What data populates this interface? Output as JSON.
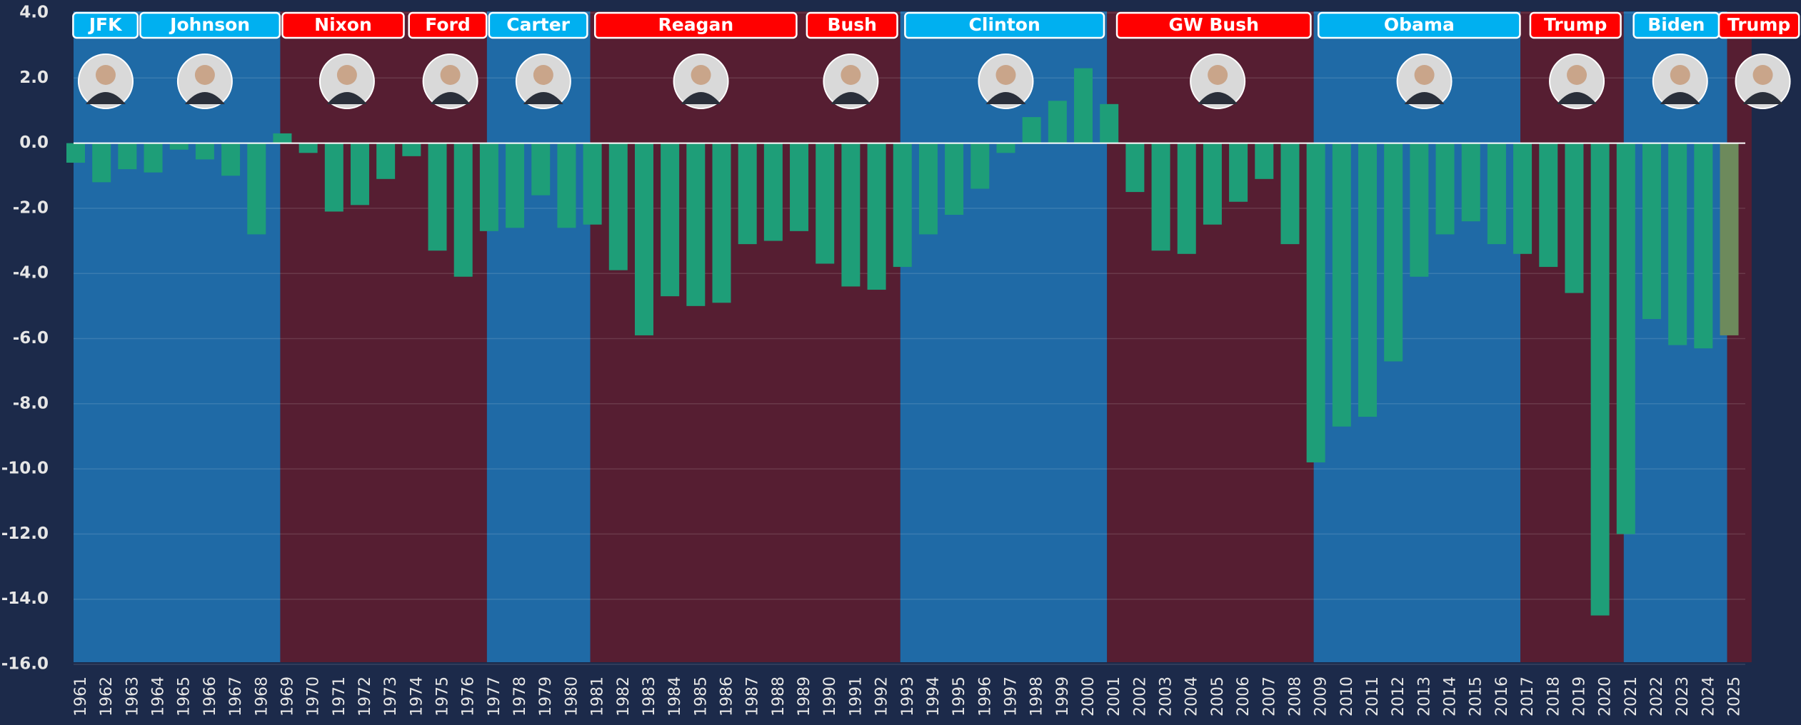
{
  "chart_data": {
    "type": "bar",
    "categories": [
      "1961",
      "1962",
      "1963",
      "1964",
      "1965",
      "1966",
      "1967",
      "1968",
      "1969",
      "1970",
      "1971",
      "1972",
      "1973",
      "1974",
      "1975",
      "1976",
      "1977",
      "1978",
      "1979",
      "1980",
      "1981",
      "1982",
      "1983",
      "1984",
      "1985",
      "1986",
      "1987",
      "1988",
      "1989",
      "1990",
      "1991",
      "1992",
      "1993",
      "1994",
      "1995",
      "1996",
      "1997",
      "1998",
      "1999",
      "2000",
      "2001",
      "2002",
      "2003",
      "2004",
      "2005",
      "2006",
      "2007",
      "2008",
      "2009",
      "2010",
      "2011",
      "2012",
      "2013",
      "2014",
      "2015",
      "2016",
      "2017",
      "2018",
      "2019",
      "2020",
      "2021",
      "2022",
      "2023",
      "2024",
      "2025"
    ],
    "values": [
      -0.6,
      -1.2,
      -0.8,
      -0.9,
      -0.2,
      -0.5,
      -1.0,
      -2.8,
      0.3,
      -0.3,
      -2.1,
      -1.9,
      -1.1,
      -0.4,
      -3.3,
      -4.1,
      -2.7,
      -2.6,
      -1.6,
      -2.6,
      -2.5,
      -3.9,
      -5.9,
      -4.7,
      -5.0,
      -4.9,
      -3.1,
      -3.0,
      -2.7,
      -3.7,
      -4.4,
      -4.5,
      -3.8,
      -2.8,
      -2.2,
      -1.4,
      -0.3,
      0.8,
      1.3,
      2.3,
      1.2,
      -1.5,
      -3.3,
      -3.4,
      -2.5,
      -1.8,
      -1.1,
      -3.1,
      -9.8,
      -8.7,
      -8.4,
      -6.7,
      -4.1,
      -2.8,
      -2.4,
      -3.1,
      -3.4,
      -3.8,
      -4.6,
      -14.5,
      -12.0,
      -5.4,
      -6.2,
      -6.3,
      -5.9
    ],
    "color": "#1e9e78",
    "color_overrides": {
      "64": "#6d8a5c"
    },
    "ylim": [
      -16,
      4
    ],
    "yticks": [
      {
        "value": 4,
        "label": "4.0"
      },
      {
        "value": 2,
        "label": "2.0"
      },
      {
        "value": 0,
        "label": "0.0"
      },
      {
        "value": -2,
        "label": "-2.0"
      },
      {
        "value": -4,
        "label": "-4.0"
      },
      {
        "value": -6,
        "label": "-6.0"
      },
      {
        "value": -8,
        "label": "-8.0"
      },
      {
        "value": -10,
        "label": "-10.0"
      },
      {
        "value": -12,
        "label": "-12.0"
      },
      {
        "value": -14,
        "label": "-14.0"
      },
      {
        "value": -16,
        "label": "-16.0"
      }
    ],
    "grid": true,
    "presidents": [
      {
        "name": "JFK",
        "color": "#00b0f0"
      },
      {
        "name": "Johnson",
        "color": "#00b0f0"
      },
      {
        "name": "Nixon",
        "color": "#ff0000"
      },
      {
        "name": "Ford",
        "color": "#ff0000"
      },
      {
        "name": "Carter",
        "color": "#00b0f0"
      },
      {
        "name": "Reagan",
        "color": "#ff0000"
      },
      {
        "name": "Bush",
        "color": "#ff0000"
      },
      {
        "name": "Clinton",
        "color": "#00b0f0"
      },
      {
        "name": "GW Bush",
        "color": "#ff0000"
      },
      {
        "name": "Obama",
        "color": "#00b0f0"
      },
      {
        "name": "Trump",
        "color": "#ff0000"
      },
      {
        "name": "Biden",
        "color": "#00b0f0"
      },
      {
        "name": "Trump",
        "color": "#ff0000"
      }
    ],
    "band_colors": [
      "#1f6aa6",
      "#561e32",
      "#1f6aa6",
      "#561e32",
      "#1f6aa6",
      "#561e32",
      "#1f6aa6",
      "#561e32",
      "#1f6aa6",
      "#561e32"
    ]
  }
}
